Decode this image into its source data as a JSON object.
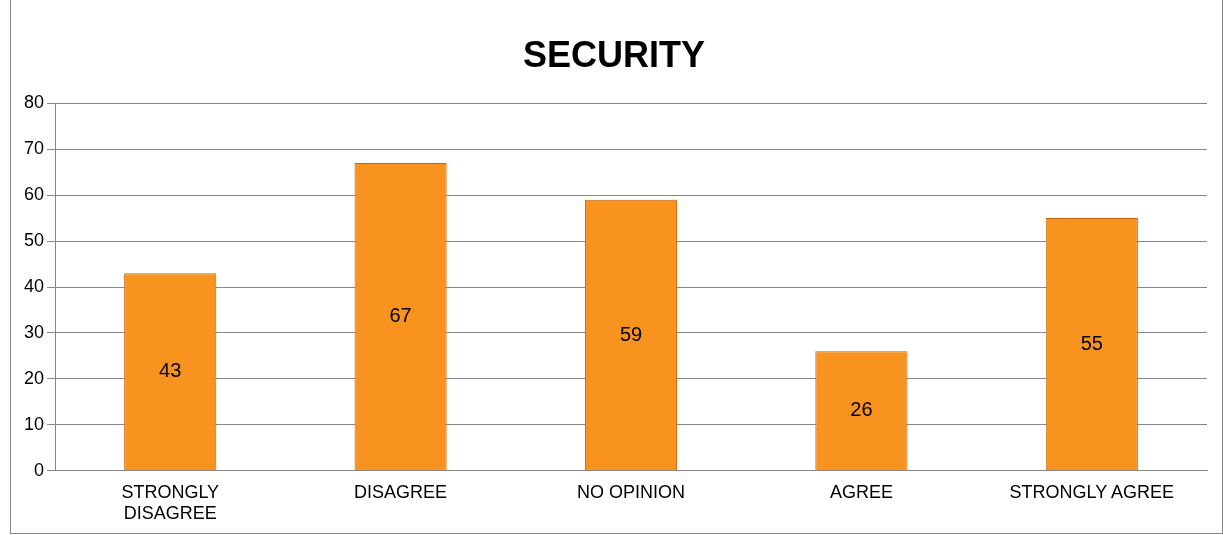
{
  "chart_data": {
    "type": "bar",
    "title": "SECURITY",
    "categories": [
      "STRONGLY DISAGREE",
      "DISAGREE",
      "NO OPINION",
      "AGREE",
      "STRONGLY AGREE"
    ],
    "values": [
      43,
      67,
      59,
      26,
      55
    ],
    "color": "#f7931e",
    "ylim": [
      0,
      80
    ],
    "yticks": [
      0,
      10,
      20,
      30,
      40,
      50,
      60,
      70,
      80
    ],
    "grid": "y",
    "legend": false,
    "data_labels": true
  }
}
